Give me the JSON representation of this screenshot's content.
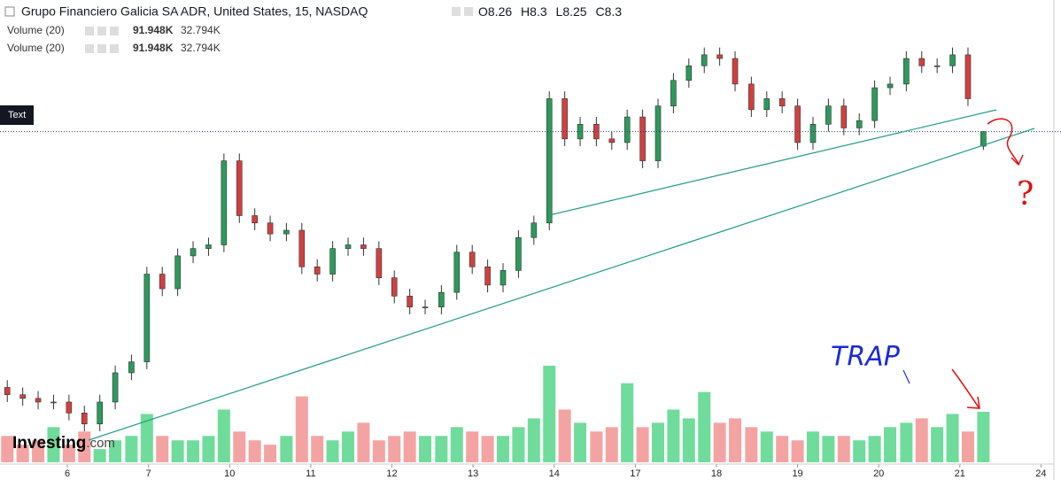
{
  "chart_data": {
    "type": "candlestick",
    "title": "Grupo Financiero Galicia SA ADR, United States, 15, NASDAQ",
    "ohlc_header": {
      "open_label": "O",
      "open": 8.26,
      "high_label": "H",
      "high": 8.3,
      "low_label": "L",
      "low": 8.25,
      "close_label": "C",
      "close": 8.3
    },
    "indicators": [
      {
        "name": "Volume (20)",
        "value": "91.948K",
        "ma": "32.794K"
      },
      {
        "name": "Volume (20)",
        "value": "91.948K",
        "ma": "32.794K"
      }
    ],
    "price_tag": "Text",
    "logo": "Investing",
    "logo_suffix": ".com",
    "annotations": [
      "TRAP",
      "?"
    ],
    "x": [
      -0.74,
      -0.55,
      -0.36,
      -0.17,
      0.02,
      0.21,
      0.4,
      0.59,
      0.79,
      0.98,
      1.17,
      1.36,
      1.55,
      1.74,
      1.93,
      2.12,
      2.31,
      2.5,
      2.7,
      2.89,
      3.08,
      3.27,
      3.46,
      3.65,
      3.84,
      4.03,
      4.22,
      4.41,
      4.61,
      4.8,
      4.99,
      5.18,
      5.37,
      5.56,
      5.75,
      5.94,
      6.13,
      6.32,
      6.52,
      6.71,
      6.9,
      7.09,
      7.28,
      7.47,
      7.66,
      7.85,
      8.04,
      8.23,
      8.43,
      8.62,
      8.81,
      9.0,
      9.19,
      9.38,
      9.57,
      9.76,
      9.95,
      10.14,
      10.34,
      10.53,
      10.72,
      10.91,
      11.1,
      11.29
    ],
    "open": [
      7.6,
      7.58,
      7.57,
      7.56,
      7.56,
      7.53,
      7.5,
      7.56,
      7.64,
      7.67,
      7.91,
      7.87,
      7.96,
      7.98,
      7.99,
      8.22,
      8.07,
      8.05,
      8.02,
      8.03,
      7.93,
      7.91,
      7.98,
      7.99,
      7.98,
      7.9,
      7.85,
      7.82,
      7.82,
      7.86,
      7.97,
      7.93,
      7.88,
      7.92,
      8.01,
      8.05,
      8.39,
      8.28,
      8.32,
      8.28,
      8.27,
      8.34,
      8.22,
      8.37,
      8.44,
      8.48,
      8.51,
      8.5,
      8.43,
      8.36,
      8.39,
      8.37,
      8.27,
      8.32,
      8.37,
      8.31,
      8.33,
      8.42,
      8.43,
      8.5,
      8.48,
      8.48,
      8.51,
      8.26
    ],
    "high": [
      7.62,
      7.6,
      7.59,
      7.58,
      7.58,
      7.55,
      7.58,
      7.66,
      7.69,
      7.93,
      7.93,
      7.98,
      8.0,
      8.01,
      8.24,
      8.24,
      8.09,
      8.07,
      8.05,
      8.05,
      7.95,
      8.0,
      8.01,
      8.01,
      8.0,
      7.92,
      7.87,
      7.84,
      7.88,
      7.99,
      7.99,
      7.95,
      7.94,
      8.03,
      8.07,
      8.41,
      8.41,
      8.34,
      8.34,
      8.3,
      8.36,
      8.36,
      8.39,
      8.46,
      8.5,
      8.53,
      8.53,
      8.52,
      8.45,
      8.41,
      8.41,
      8.39,
      8.34,
      8.39,
      8.39,
      8.35,
      8.44,
      8.45,
      8.52,
      8.52,
      8.5,
      8.53,
      8.53,
      8.3
    ],
    "low": [
      7.56,
      7.55,
      7.54,
      7.54,
      7.51,
      7.48,
      7.48,
      7.54,
      7.62,
      7.65,
      7.85,
      7.85,
      7.94,
      7.96,
      7.97,
      8.05,
      8.03,
      8.0,
      8.0,
      7.91,
      7.89,
      7.89,
      7.96,
      7.96,
      7.88,
      7.83,
      7.8,
      7.8,
      7.8,
      7.84,
      7.91,
      7.86,
      7.86,
      7.9,
      7.99,
      8.03,
      8.26,
      8.26,
      8.26,
      8.25,
      8.25,
      8.2,
      8.2,
      8.35,
      8.42,
      8.46,
      8.48,
      8.41,
      8.34,
      8.34,
      8.35,
      8.25,
      8.25,
      8.3,
      8.29,
      8.29,
      8.31,
      8.4,
      8.41,
      8.46,
      8.46,
      8.46,
      8.37,
      8.25
    ],
    "close": [
      7.58,
      7.57,
      7.56,
      7.56,
      7.53,
      7.5,
      7.56,
      7.64,
      7.67,
      7.91,
      7.87,
      7.96,
      7.98,
      7.99,
      8.22,
      8.07,
      8.05,
      8.02,
      8.03,
      7.93,
      7.91,
      7.98,
      7.99,
      7.98,
      7.9,
      7.85,
      7.82,
      7.82,
      7.86,
      7.97,
      7.93,
      7.88,
      7.92,
      8.01,
      8.05,
      8.39,
      8.28,
      8.32,
      8.28,
      8.27,
      8.34,
      8.22,
      8.37,
      8.44,
      8.48,
      8.51,
      8.5,
      8.43,
      8.36,
      8.39,
      8.37,
      8.27,
      8.32,
      8.37,
      8.31,
      8.33,
      8.42,
      8.43,
      8.5,
      8.48,
      8.48,
      8.51,
      8.39,
      8.3
    ],
    "volume": [
      48000,
      32000,
      40000,
      64000,
      32000,
      56000,
      24000,
      40000,
      48000,
      88000,
      48000,
      40000,
      40000,
      48000,
      96000,
      56000,
      40000,
      32000,
      48000,
      120000,
      48000,
      40000,
      56000,
      72000,
      40000,
      48000,
      56000,
      48000,
      48000,
      64000,
      56000,
      48000,
      48000,
      64000,
      80000,
      176000,
      96000,
      72000,
      56000,
      64000,
      144000,
      64000,
      72000,
      96000,
      80000,
      128000,
      72000,
      80000,
      64000,
      56000,
      48000,
      40000,
      56000,
      48000,
      48000,
      40000,
      48000,
      64000,
      72000,
      80000,
      64000,
      88000,
      56000,
      91948
    ],
    "up_color": "#2c9a5c",
    "down_color": "#d1403f",
    "volume_up_color": "#6fdc9c",
    "volume_down_color": "#f4a3a3",
    "xlim": [
      -0.83,
      12.05
    ],
    "ylim": [
      7.4,
      8.66
    ],
    "volume_lim": [
      0,
      200000
    ],
    "xticks": [
      {
        "value": 0,
        "label": "6"
      },
      {
        "value": 1,
        "label": "7"
      },
      {
        "value": 2,
        "label": "10"
      },
      {
        "value": 3,
        "label": "11"
      },
      {
        "value": 4,
        "label": "12"
      },
      {
        "value": 5,
        "label": "13"
      },
      {
        "value": 6,
        "label": "14"
      },
      {
        "value": 7,
        "label": "17"
      },
      {
        "value": 8,
        "label": "18"
      },
      {
        "value": 9,
        "label": "19"
      },
      {
        "value": 10,
        "label": "20"
      },
      {
        "value": 11,
        "label": "21"
      },
      {
        "value": 12,
        "label": "24"
      }
    ]
  }
}
